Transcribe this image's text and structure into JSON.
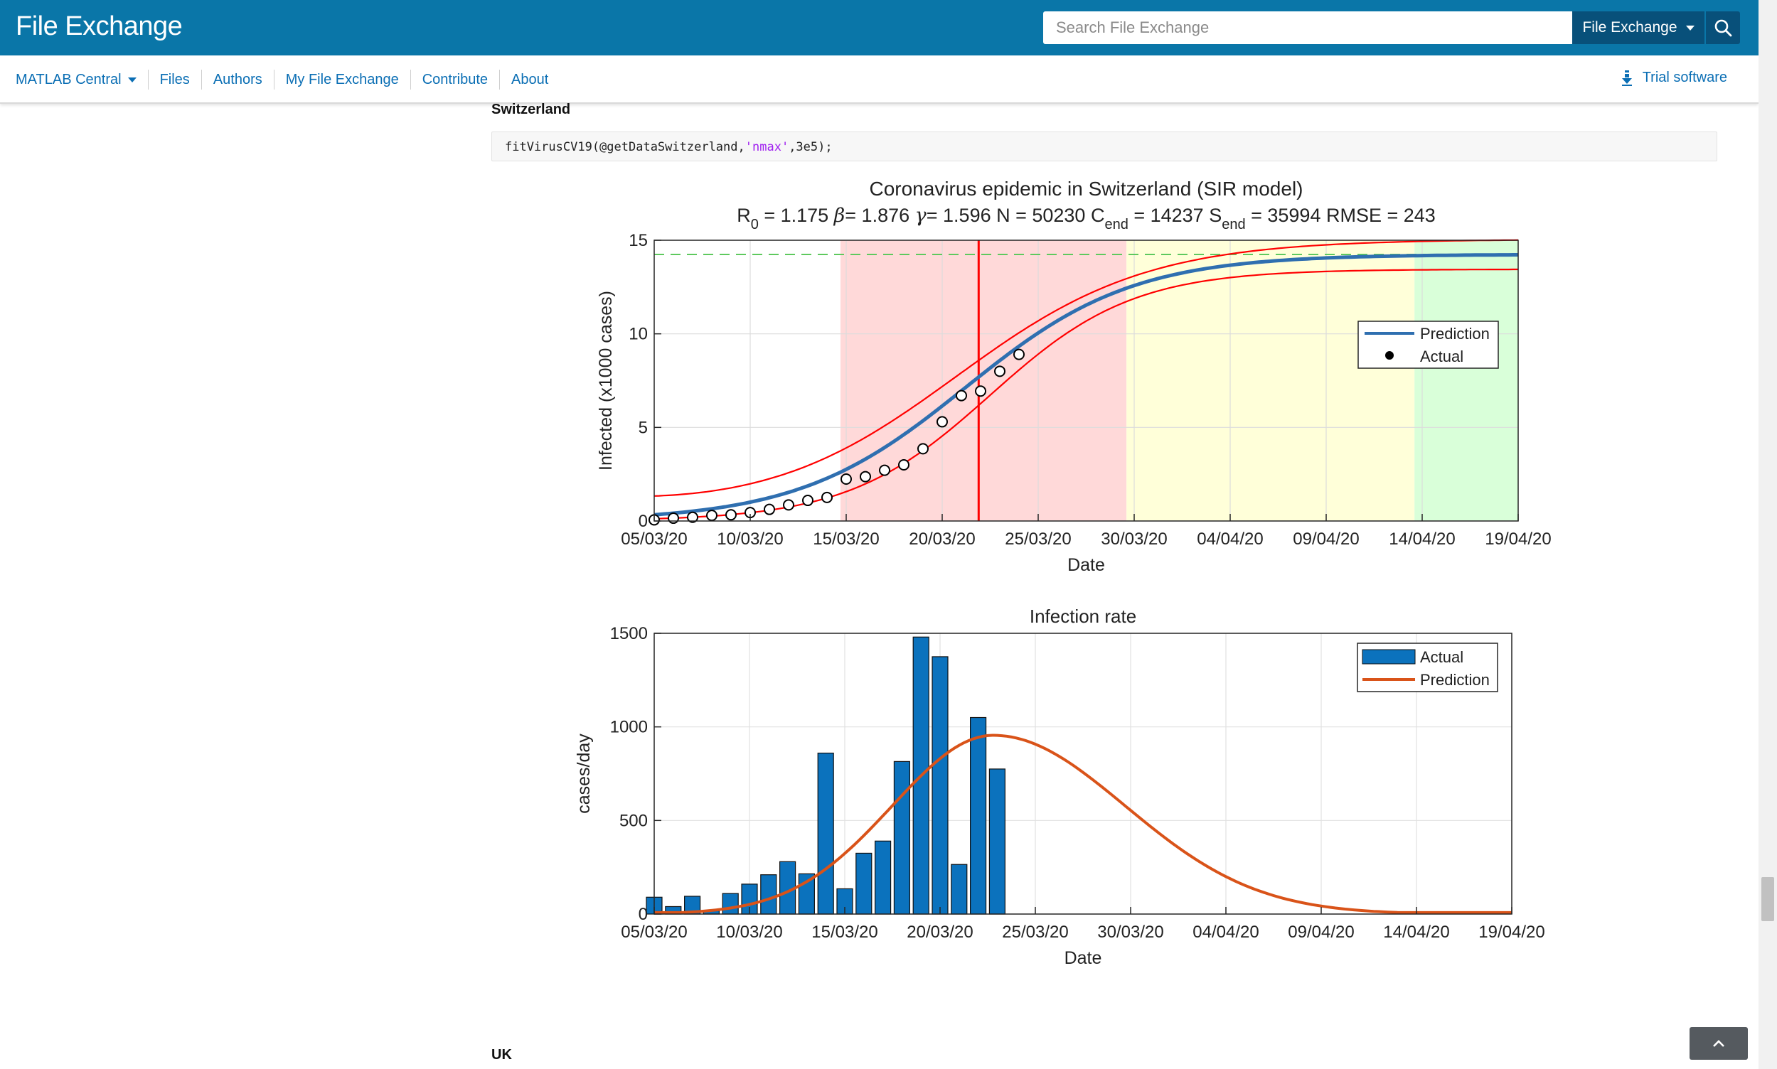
{
  "header": {
    "brand": "File Exchange",
    "search_placeholder": "Search File Exchange",
    "scope_label": "File Exchange"
  },
  "nav": {
    "items": [
      "MATLAB Central",
      "Files",
      "Authors",
      "My File Exchange",
      "Contribute",
      "About"
    ],
    "trial_label": "Trial software"
  },
  "content": {
    "section1_title": "Switzerland",
    "code_prefix": "fitVirusCV19(@getDataSwitzerland,",
    "code_string": "'nmax'",
    "code_suffix": ",3e5);",
    "section2_title": "UK"
  },
  "colors": {
    "header_bg": "#0a76a8",
    "link": "#0a6eb4",
    "fit_line": "#2f6fb0",
    "bounds": "#ff0000",
    "bar": "#0b72bd",
    "prediction_orange": "#d95319"
  },
  "chart_data": [
    {
      "type": "line",
      "title": "Coronavirus epidemic in Switzerland (SIR model)",
      "subtitle_params": {
        "R0": "1.175",
        "beta": "1.876",
        "gamma": "1.596",
        "N": "50230",
        "C_end": "14237",
        "S_end": "35994",
        "RMSE": "243"
      },
      "xlabel": "Date",
      "ylabel": "Infected (x1000 cases)",
      "ylim": [
        0,
        15
      ],
      "yticks": [
        0,
        5,
        10,
        15
      ],
      "xticks": [
        "05/03/20",
        "10/03/20",
        "15/03/20",
        "20/03/20",
        "25/03/20",
        "30/03/20",
        "04/04/20",
        "09/04/20",
        "14/04/20",
        "19/04/20"
      ],
      "x_range_days": [
        0,
        45
      ],
      "legend": [
        "Prediction",
        "Actual"
      ],
      "legend_position": "right",
      "phase_bands": [
        {
          "from_day": 9.7,
          "to_day": 24.6,
          "color": "#ffd9d9"
        },
        {
          "from_day": 24.6,
          "to_day": 39.6,
          "color": "#ffffd9"
        },
        {
          "from_day": 39.6,
          "to_day": 45,
          "color": "#d9ffd9"
        }
      ],
      "inflection_day": 16.9,
      "final_size_thousands": 14.24,
      "series": [
        {
          "name": "Actual",
          "x_day": [
            0,
            1,
            2,
            3,
            4,
            5,
            6,
            7,
            8,
            9,
            10,
            11,
            12,
            13,
            14,
            15,
            16,
            17,
            18,
            19
          ],
          "values": [
            0.06,
            0.15,
            0.2,
            0.3,
            0.33,
            0.45,
            0.62,
            0.86,
            1.1,
            1.26,
            2.24,
            2.37,
            2.71,
            3.0,
            3.86,
            5.3,
            6.7,
            6.94,
            8.0,
            8.9
          ]
        },
        {
          "name": "Prediction",
          "model": "logistic",
          "K": 14.24,
          "k": 0.23,
          "t0": 16.2
        },
        {
          "name": "upper bound",
          "model": "logistic",
          "K": 15.05,
          "k": 0.2,
          "t0": 15.6,
          "offset": 0.7
        },
        {
          "name": "lower bound",
          "model": "logistic",
          "K": 13.45,
          "k": 0.27,
          "t0": 17.5
        }
      ]
    },
    {
      "type": "bar",
      "title": "Infection rate",
      "xlabel": "Date",
      "ylabel": "cases/day",
      "ylim": [
        0,
        1500
      ],
      "yticks": [
        0,
        500,
        1000,
        1500
      ],
      "xticks": [
        "05/03/20",
        "10/03/20",
        "15/03/20",
        "20/03/20",
        "25/03/20",
        "30/03/20",
        "04/04/20",
        "09/04/20",
        "14/04/20",
        "19/04/20"
      ],
      "legend": [
        "Actual",
        "Prediction"
      ],
      "legend_position": "top-right",
      "series": [
        {
          "name": "Actual",
          "x_day": [
            0,
            1,
            2,
            3,
            4,
            5,
            6,
            7,
            8,
            9,
            10,
            11,
            12,
            13,
            14,
            15,
            16,
            17,
            18,
            19
          ],
          "values": [
            90,
            40,
            95,
            20,
            110,
            160,
            210,
            280,
            215,
            860,
            135,
            325,
            390,
            815,
            1480,
            1375,
            265,
            1050,
            775,
            0
          ]
        },
        {
          "name": "Prediction",
          "model": "gaussian-like",
          "peak": 955,
          "peak_day": 17.8
        }
      ]
    }
  ]
}
